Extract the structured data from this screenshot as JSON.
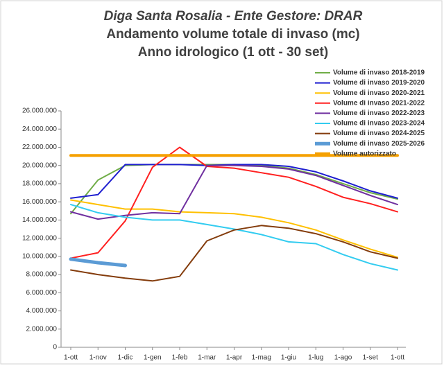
{
  "chart_data": {
    "type": "line",
    "title": [
      "Diga Santa Rosalia - Ente Gestore: DRAR",
      "Andamento volume totale di invaso (mc)",
      "Anno idrologico (1 ott - 30 set)"
    ],
    "categories": [
      "1-ott",
      "1-nov",
      "1-dic",
      "1-gen",
      "1-feb",
      "1-mar",
      "1-apr",
      "1-mag",
      "1-giu",
      "1-lug",
      "1-ago",
      "1-set",
      "1-ott"
    ],
    "ylim": [
      0,
      26000000
    ],
    "yticks": [
      {
        "value": 0,
        "label": "0"
      },
      {
        "value": 2000000,
        "label": "2.000.000"
      },
      {
        "value": 4000000,
        "label": "4.000.000"
      },
      {
        "value": 6000000,
        "label": "6.000.000"
      },
      {
        "value": 8000000,
        "label": "8.000.000"
      },
      {
        "value": 10000000,
        "label": "10.000.000"
      },
      {
        "value": 12000000,
        "label": "12.000.000"
      },
      {
        "value": 14000000,
        "label": "14.000.000"
      },
      {
        "value": 16000000,
        "label": "16.000.000"
      },
      {
        "value": 18000000,
        "label": "18.000.000"
      },
      {
        "value": 20000000,
        "label": "20.000.000"
      },
      {
        "value": 22000000,
        "label": "22.000.000"
      },
      {
        "value": 24000000,
        "label": "24.000.000"
      },
      {
        "value": 26000000,
        "label": "26.000.000"
      }
    ],
    "grid": false,
    "legend": "top-right",
    "series": [
      {
        "name": "Volume di invaso 2018-2019",
        "color": "#70ad47",
        "width": 2,
        "values": [
          14700000,
          18400000,
          20000000,
          20100000,
          20100000,
          20100000,
          20100000,
          20000000,
          19700000,
          19000000,
          18000000,
          17000000,
          16300000
        ]
      },
      {
        "name": "Volume di invaso 2019-2020",
        "color": "#1f1fd0",
        "width": 2,
        "values": [
          16400000,
          16800000,
          20100000,
          20100000,
          20100000,
          20000000,
          20100000,
          20100000,
          19900000,
          19300000,
          18300000,
          17200000,
          16400000
        ]
      },
      {
        "name": "Volume di invaso 2020-2021",
        "color": "#ffc000",
        "width": 2,
        "values": [
          16200000,
          15700000,
          15200000,
          15200000,
          14900000,
          14800000,
          14700000,
          14300000,
          13700000,
          12900000,
          11800000,
          10800000,
          9900000
        ]
      },
      {
        "name": "Volume di invaso 2021-2022",
        "color": "#ff2020",
        "width": 2,
        "values": [
          9800000,
          10400000,
          13900000,
          19800000,
          22000000,
          19900000,
          19700000,
          19200000,
          18700000,
          17700000,
          16500000,
          15800000,
          14900000
        ]
      },
      {
        "name": "Volume di invaso 2022-2023",
        "color": "#7030a0",
        "width": 2,
        "values": [
          14900000,
          14100000,
          14500000,
          14800000,
          14700000,
          20000000,
          20000000,
          19900000,
          19600000,
          18900000,
          17800000,
          16700000,
          15700000
        ]
      },
      {
        "name": "Volume di invaso 2023-2024",
        "color": "#33ccf0",
        "width": 2,
        "values": [
          15700000,
          14800000,
          14300000,
          14000000,
          14000000,
          13500000,
          13000000,
          12400000,
          11600000,
          11400000,
          10200000,
          9200000,
          8500000
        ]
      },
      {
        "name": "Volume di invaso 2024-2025",
        "color": "#843c0c",
        "width": 2,
        "values": [
          8500000,
          8000000,
          7600000,
          7300000,
          7800000,
          11700000,
          12900000,
          13400000,
          13100000,
          12500000,
          11600000,
          10500000,
          9800000
        ]
      },
      {
        "name": "Volume di invaso 2025-2026",
        "color": "#5b9bd5",
        "width": 5,
        "values": [
          9700000,
          9300000,
          9000000,
          null,
          null,
          null,
          null,
          null,
          null,
          null,
          null,
          null,
          null
        ]
      },
      {
        "name": "Volume autorizzato",
        "color": "#f5a000",
        "width": 4,
        "values": [
          21100000,
          21100000,
          21100000,
          21100000,
          21100000,
          21100000,
          21100000,
          21100000,
          21100000,
          21100000,
          21100000,
          21100000,
          21100000
        ]
      }
    ]
  }
}
